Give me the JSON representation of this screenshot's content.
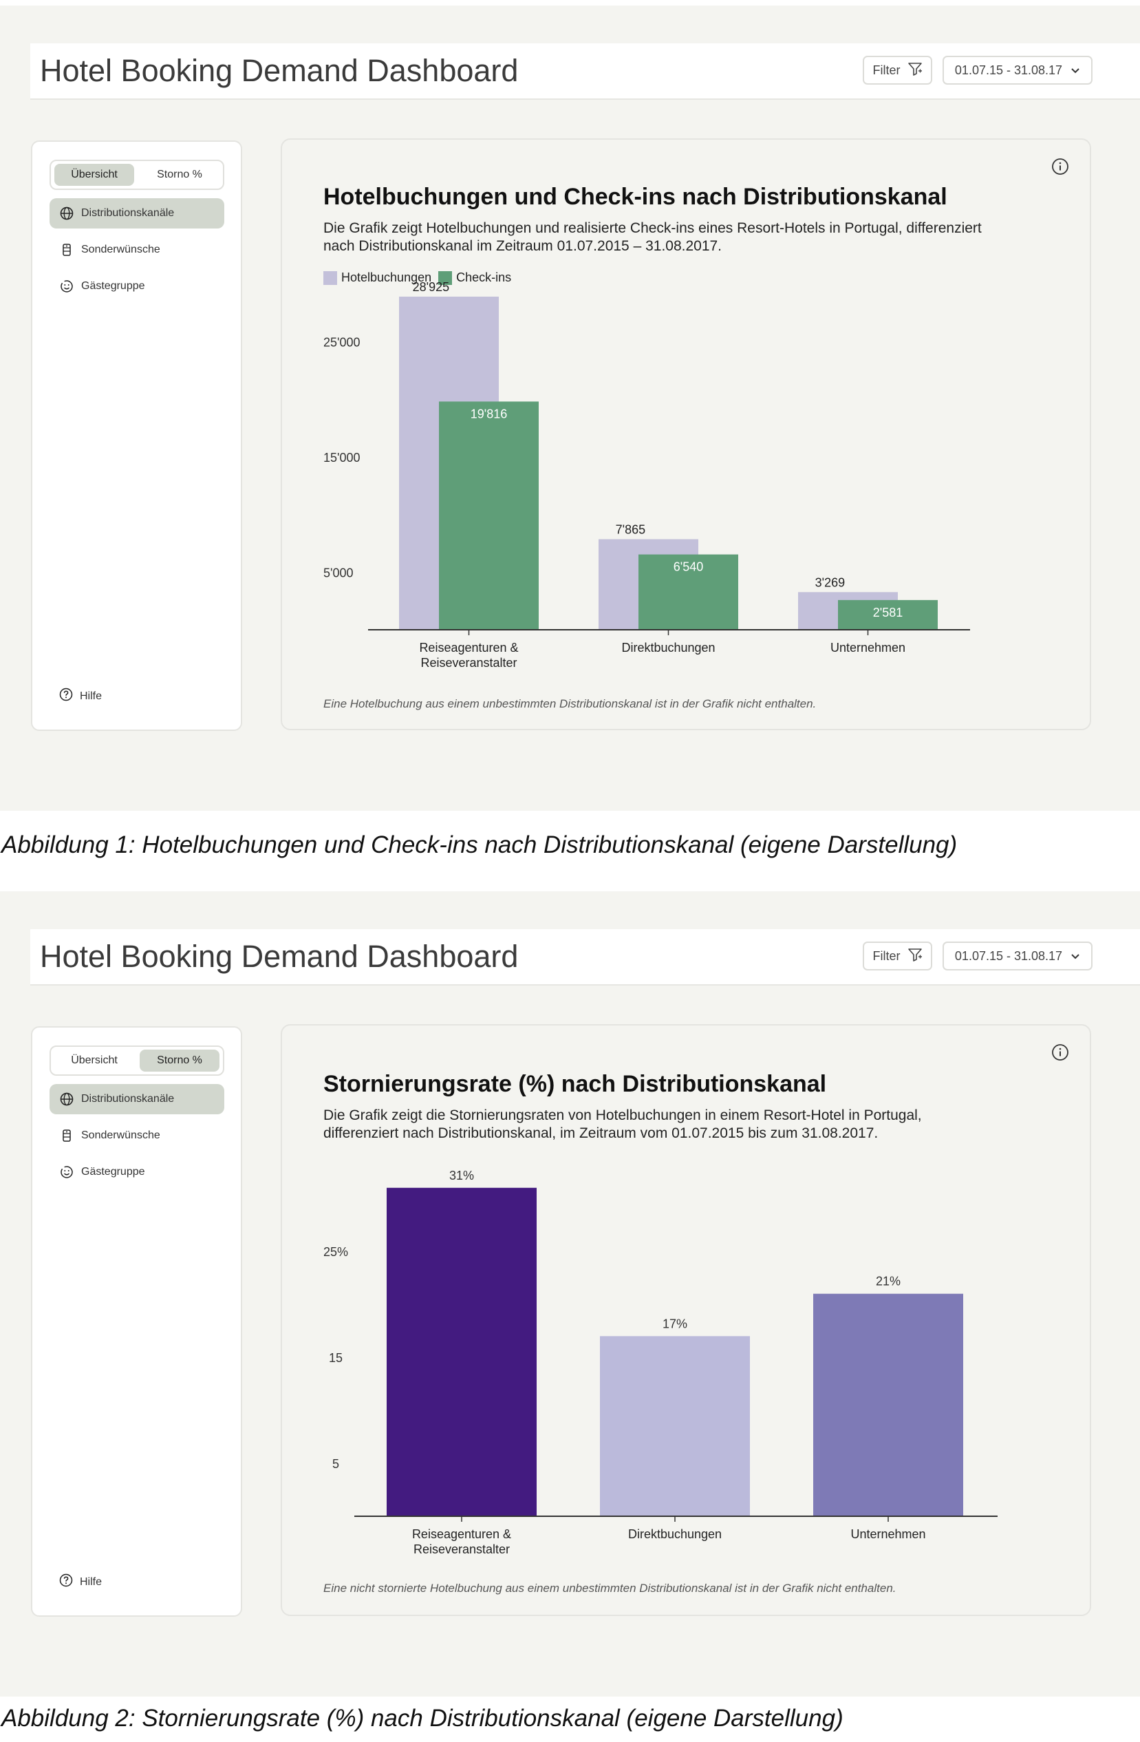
{
  "dashboard1": {
    "header": {
      "title": "Hotel Booking Demand Dashboard",
      "filter_label": "Filter",
      "date_range": "01.07.15 - 31.08.17"
    },
    "sidebar": {
      "segments": [
        "Übersicht",
        "Storno %"
      ],
      "active_segment": "Übersicht",
      "nav": [
        "Distributionskanäle",
        "Sonderwünsche",
        "Gästegruppe"
      ],
      "help": "Hilfe"
    },
    "title": "Hotelbuchungen und Check-ins nach Distributionskanal",
    "subtitle": "Die Grafik zeigt Hotelbuchungen und realisierte Check-ins eines Resort-Hotels in Portugal, differenziert nach Distributionskanal im Zeitraum 01.07.2015 – 31.08.2017.",
    "legend": [
      "Hotelbuchungen",
      "Check-ins"
    ],
    "footnote": "Eine Hotelbuchung aus einem unbestimmten Distributionskanal ist in der Grafik nicht enthalten."
  },
  "dashboard2": {
    "header": {
      "title": "Hotel Booking Demand Dashboard",
      "filter_label": "Filter",
      "date_range": "01.07.15 - 31.08.17"
    },
    "sidebar": {
      "segments": [
        "Übersicht",
        "Storno %"
      ],
      "active_segment": "Storno %",
      "nav": [
        "Distributionskanäle",
        "Sonderwünsche",
        "Gästegruppe"
      ],
      "help": "Hilfe"
    },
    "title": "Stornierungsrate (%) nach Distributionskanal",
    "subtitle": "Die Grafik zeigt die Stornierungsraten von Hotelbuchungen in einem Resort-Hotel in Portugal, differenziert nach Distributionskanal, im Zeitraum vom 01.07.2015 bis zum 31.08.2017.",
    "footnote": "Eine nicht stornierte Hotelbuchung aus einem unbestimmten Distributionskanal ist in der Grafik nicht enthalten."
  },
  "captions": [
    "Abbildung 1: Hotelbuchungen und Check-ins nach Distributionskanal (eigene Darstellung)",
    "Abbildung 2: Stornierungsrate (%) nach Distributionskanal (eigene Darstellung)"
  ],
  "colors": {
    "hotelbuchungen": "#c3c0da",
    "checkins": "#5f9e78",
    "storno": [
      "#431b80",
      "#bbbadb",
      "#7e7ab6"
    ]
  },
  "chart_data": [
    {
      "type": "bar",
      "title": "Hotelbuchungen und Check-ins nach Distributionskanal",
      "categories": [
        "Reiseagenturen & Reiseveranstalter",
        "Direktbuchungen",
        "Unternehmen"
      ],
      "series": [
        {
          "name": "Hotelbuchungen",
          "values": [
            28925,
            7865,
            3269
          ],
          "labels": [
            "28'925",
            "7'865",
            "3'269"
          ]
        },
        {
          "name": "Check-ins",
          "values": [
            19816,
            6540,
            2581
          ],
          "labels": [
            "19'816",
            "6'540",
            "2'581"
          ]
        }
      ],
      "yticks": [
        5000,
        15000,
        25000
      ],
      "ytick_labels": [
        "5'000",
        "15'000",
        "25'000"
      ],
      "ylim": [
        0,
        30000
      ],
      "legend_position": "top-left",
      "grid": false
    },
    {
      "type": "bar",
      "title": "Stornierungsrate (%) nach Distributionskanal",
      "categories": [
        "Reiseagenturen & Reiseveranstalter",
        "Direktbuchungen",
        "Unternehmen"
      ],
      "values": [
        31,
        17,
        21
      ],
      "labels": [
        "31%",
        "17%",
        "21%"
      ],
      "yticks": [
        5,
        15,
        25
      ],
      "ytick_labels": [
        "5",
        "15",
        "25%"
      ],
      "ylim": [
        0,
        33
      ],
      "grid": false
    }
  ]
}
